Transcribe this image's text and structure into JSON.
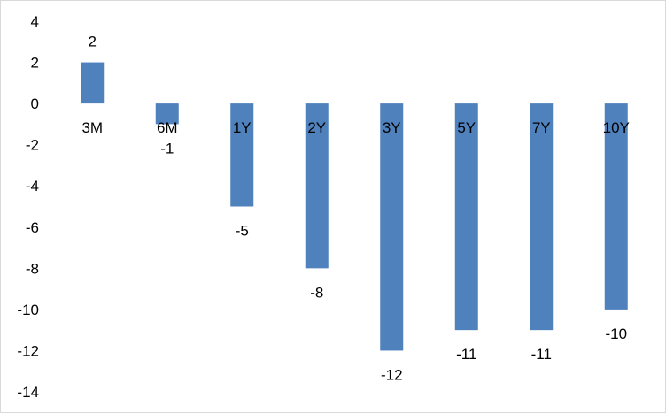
{
  "chart_data": {
    "type": "bar",
    "categories": [
      "3M",
      "6M",
      "1Y",
      "2Y",
      "3Y",
      "5Y",
      "7Y",
      "10Y"
    ],
    "values": [
      2,
      -1,
      -5,
      -8,
      -12,
      -11,
      -11,
      -10
    ],
    "data_labels": [
      "2",
      "-1",
      "-5",
      "-8",
      "-12",
      "-11",
      "-11",
      "-10"
    ],
    "ylim": [
      -14,
      4
    ],
    "yticks": [
      4,
      2,
      0,
      -2,
      -4,
      -6,
      -8,
      -10,
      -12,
      -14
    ],
    "ytick_labels": [
      "4",
      "2",
      "0",
      "-2",
      "-4",
      "-6",
      "-8",
      "-10",
      "-12",
      "-14"
    ],
    "grid": false,
    "legend": "none",
    "bar_color": "#4f81bd",
    "title": "",
    "xlabel": "",
    "ylabel": ""
  }
}
